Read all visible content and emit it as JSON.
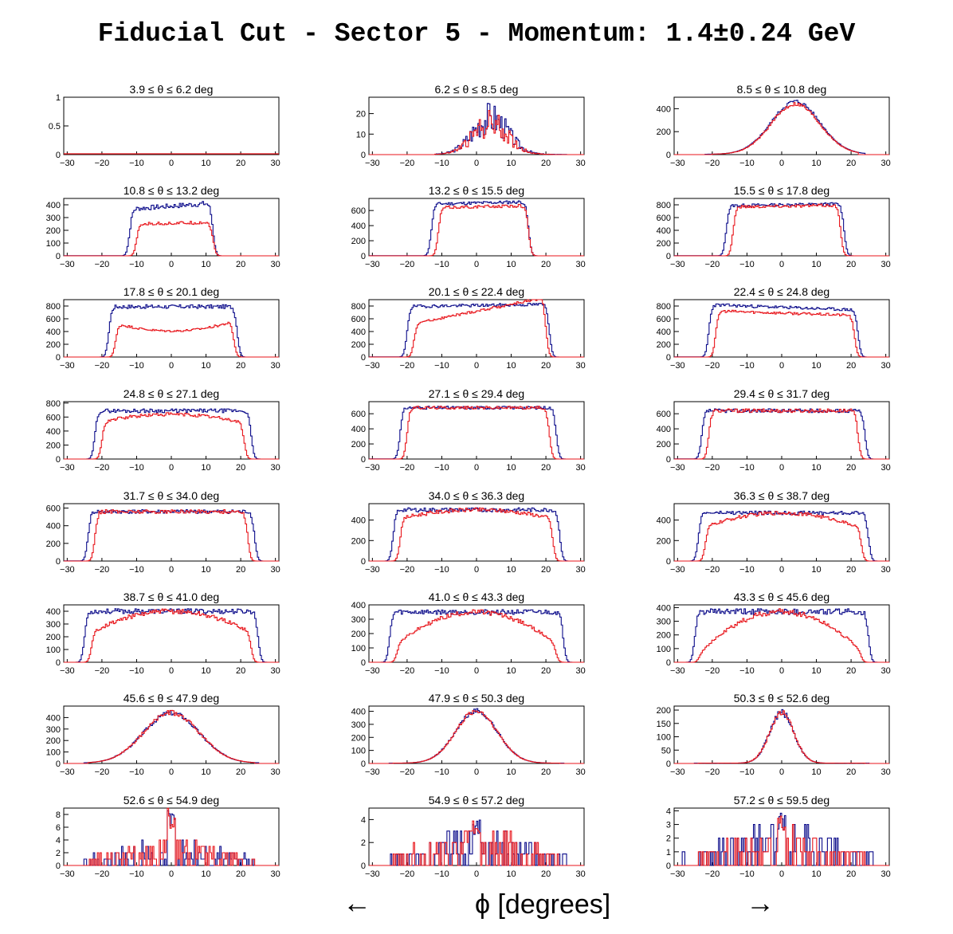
{
  "title": "Fiducial Cut - Sector 5 - Momentum: 1.4±0.24 GeV",
  "footer": {
    "arrow_left": "←",
    "xlabel": "ϕ  [degrees]",
    "arrow_right": "→"
  },
  "colors": {
    "blue_series": "#0b0b8a",
    "red_series": "#e8151b"
  },
  "chart_data": [
    {
      "type": "histogram",
      "title": "3.9 ≤ θ ≤ 6.2 deg",
      "ylim": [
        0,
        1
      ],
      "yticks": [
        "0",
        "0.5",
        "1"
      ],
      "xticks": [
        "−30",
        "−20",
        "−10",
        "0",
        "10",
        "20",
        "30"
      ],
      "shape": {
        "kind": "empty"
      }
    },
    {
      "type": "histogram",
      "title": "6.2 ≤ θ ≤ 8.5 deg",
      "ylim": [
        0,
        28
      ],
      "yticks": [
        "0",
        "10",
        "20"
      ],
      "xticks": [
        "−30",
        "−20",
        "−10",
        "0",
        "10",
        "20",
        "30"
      ],
      "shape": {
        "kind": "peak",
        "center": 4,
        "width": 5,
        "blue_peak": 18,
        "red_peak": 15,
        "blue_range": [
          -12,
          26
        ],
        "red_range": [
          -12,
          22
        ],
        "noise": 0.45,
        "seed": 3
      }
    },
    {
      "type": "histogram",
      "title": "8.5 ≤ θ ≤ 10.8 deg",
      "ylim": [
        0,
        500
      ],
      "yticks": [
        "0",
        "200",
        "400"
      ],
      "xticks": [
        "−30",
        "−20",
        "−10",
        "0",
        "10",
        "20",
        "30"
      ],
      "shape": {
        "kind": "peak",
        "center": 4,
        "width": 7,
        "blue_peak": 460,
        "red_peak": 440,
        "blue_range": [
          -22,
          24
        ],
        "red_range": [
          -20,
          22
        ],
        "noise": 0.04,
        "seed": 5
      }
    },
    {
      "type": "histogram",
      "title": "10.8 ≤ θ ≤ 13.2 deg",
      "ylim": [
        0,
        450
      ],
      "yticks": [
        "0",
        "100",
        "200",
        "300",
        "400"
      ],
      "xticks": [
        "−30",
        "−20",
        "−10",
        "0",
        "10",
        "20",
        "30"
      ],
      "shape": {
        "kind": "plateau",
        "blue_edge": [
          -12,
          12
        ],
        "red_edge": [
          -10,
          12
        ],
        "blue_level": 390,
        "red_level": 255,
        "blue_tilt": 0.1,
        "red_tilt": 0.05,
        "noise": 0.05,
        "seed": 7
      }
    },
    {
      "type": "histogram",
      "title": "13.2 ≤ θ ≤ 15.5 deg",
      "ylim": [
        0,
        760
      ],
      "yticks": [
        "0",
        "200",
        "400",
        "600"
      ],
      "xticks": [
        "−30",
        "−20",
        "−10",
        "0",
        "10",
        "20",
        "30"
      ],
      "shape": {
        "kind": "plateau",
        "blue_edge": [
          -13,
          15
        ],
        "red_edge": [
          -11,
          15
        ],
        "blue_level": 700,
        "red_level": 650,
        "blue_tilt": 0.03,
        "red_tilt": 0.03,
        "noise": 0.03,
        "seed": 11
      }
    },
    {
      "type": "histogram",
      "title": "15.5 ≤ θ ≤ 17.8 deg",
      "ylim": [
        0,
        900
      ],
      "yticks": [
        "0",
        "200",
        "400",
        "600",
        "800"
      ],
      "xticks": [
        "−30",
        "−20",
        "−10",
        "0",
        "10",
        "20",
        "30"
      ],
      "shape": {
        "kind": "plateau",
        "blue_edge": [
          -16,
          18
        ],
        "red_edge": [
          -14,
          17
        ],
        "blue_level": 800,
        "red_level": 780,
        "blue_tilt": 0.02,
        "red_tilt": 0.02,
        "noise": 0.03,
        "seed": 13
      }
    },
    {
      "type": "histogram",
      "title": "17.8 ≤ θ ≤ 20.1 deg",
      "ylim": [
        0,
        900
      ],
      "yticks": [
        "0",
        "200",
        "400",
        "600",
        "800"
      ],
      "xticks": [
        "−30",
        "−20",
        "−10",
        "0",
        "10",
        "20",
        "30"
      ],
      "shape": {
        "kind": "plateau",
        "blue_edge": [
          -18,
          19
        ],
        "red_edge": [
          -16,
          18
        ],
        "blue_level": 790,
        "red_level": 430,
        "blue_tilt": 0.0,
        "red_tilt": 0.0,
        "red_dip": 0.28,
        "noise": 0.04,
        "seed": 17
      }
    },
    {
      "type": "histogram",
      "title": "20.1 ≤ θ ≤ 22.4 deg",
      "ylim": [
        0,
        900
      ],
      "yticks": [
        "0",
        "200",
        "400",
        "600",
        "800"
      ],
      "xticks": [
        "−30",
        "−20",
        "−10",
        "0",
        "10",
        "20",
        "30"
      ],
      "shape": {
        "kind": "plateau",
        "blue_edge": [
          -20,
          21
        ],
        "red_edge": [
          -18,
          20
        ],
        "blue_level": 810,
        "red_level": 720,
        "blue_tilt": 0.02,
        "red_tilt": 0.3,
        "noise": 0.03,
        "seed": 19
      }
    },
    {
      "type": "histogram",
      "title": "22.4 ≤ θ ≤ 24.8 deg",
      "ylim": [
        0,
        900
      ],
      "yticks": [
        "0",
        "200",
        "400",
        "600",
        "800"
      ],
      "xticks": [
        "−30",
        "−20",
        "−10",
        "0",
        "10",
        "20",
        "30"
      ],
      "shape": {
        "kind": "plateau",
        "blue_edge": [
          -21,
          22
        ],
        "red_edge": [
          -19,
          21
        ],
        "blue_level": 780,
        "red_level": 690,
        "blue_tilt": -0.05,
        "red_tilt": -0.05,
        "noise": 0.03,
        "seed": 23
      }
    },
    {
      "type": "histogram",
      "title": "24.8 ≤ θ ≤ 27.1 deg",
      "ylim": [
        0,
        820
      ],
      "yticks": [
        "0",
        "200",
        "400",
        "600",
        "800"
      ],
      "xticks": [
        "−30",
        "−20",
        "−10",
        "0",
        "10",
        "20",
        "30"
      ],
      "shape": {
        "kind": "plateau",
        "blue_edge": [
          -22,
          23
        ],
        "red_edge": [
          -20,
          21
        ],
        "blue_level": 690,
        "red_level": 640,
        "blue_tilt": 0.0,
        "red_tilt": 0.0,
        "red_round": 0.25,
        "noise": 0.04,
        "seed": 29
      }
    },
    {
      "type": "histogram",
      "title": "27.1 ≤ θ ≤ 29.4 deg",
      "ylim": [
        0,
        760
      ],
      "yticks": [
        "0",
        "200",
        "400",
        "600"
      ],
      "xticks": [
        "−30",
        "−20",
        "−10",
        "0",
        "10",
        "20",
        "30"
      ],
      "shape": {
        "kind": "plateau",
        "blue_edge": [
          -22,
          23
        ],
        "red_edge": [
          -20,
          21
        ],
        "blue_level": 680,
        "red_level": 680,
        "blue_tilt": 0.0,
        "red_tilt": 0.0,
        "noise": 0.03,
        "seed": 31
      }
    },
    {
      "type": "histogram",
      "title": "29.4 ≤ θ ≤ 31.7 deg",
      "ylim": [
        0,
        760
      ],
      "yticks": [
        "0",
        "200",
        "400",
        "600"
      ],
      "xticks": [
        "−30",
        "−20",
        "−10",
        "0",
        "10",
        "20",
        "30"
      ],
      "shape": {
        "kind": "plateau",
        "blue_edge": [
          -23,
          24
        ],
        "red_edge": [
          -21,
          22
        ],
        "blue_level": 640,
        "red_level": 640,
        "blue_tilt": 0.0,
        "red_tilt": 0.0,
        "noise": 0.04,
        "seed": 37
      }
    },
    {
      "type": "histogram",
      "title": "31.7 ≤ θ ≤ 34.0 deg",
      "ylim": [
        0,
        650
      ],
      "yticks": [
        "0",
        "200",
        "400",
        "600"
      ],
      "xticks": [
        "−30",
        "−20",
        "−10",
        "0",
        "10",
        "20",
        "30"
      ],
      "shape": {
        "kind": "plateau",
        "blue_edge": [
          -24,
          24
        ],
        "red_edge": [
          -22,
          22
        ],
        "blue_level": 560,
        "red_level": 560,
        "blue_tilt": 0.0,
        "red_tilt": 0.0,
        "noise": 0.04,
        "seed": 41
      }
    },
    {
      "type": "histogram",
      "title": "34.0 ≤ θ ≤ 36.3 deg",
      "ylim": [
        0,
        560
      ],
      "yticks": [
        "0",
        "200",
        "400"
      ],
      "xticks": [
        "−30",
        "−20",
        "−10",
        "0",
        "10",
        "20",
        "30"
      ],
      "shape": {
        "kind": "plateau",
        "blue_edge": [
          -24,
          24
        ],
        "red_edge": [
          -22,
          22
        ],
        "blue_level": 500,
        "red_level": 500,
        "blue_tilt": 0.0,
        "red_tilt": 0.0,
        "red_round": 0.2,
        "noise": 0.04,
        "seed": 43
      }
    },
    {
      "type": "histogram",
      "title": "36.3 ≤ θ ≤ 38.7 deg",
      "ylim": [
        0,
        560
      ],
      "yticks": [
        "0",
        "200",
        "400"
      ],
      "xticks": [
        "−30",
        "−20",
        "−10",
        "0",
        "10",
        "20",
        "30"
      ],
      "shape": {
        "kind": "plateau",
        "blue_edge": [
          -24,
          25
        ],
        "red_edge": [
          -22,
          23
        ],
        "blue_level": 470,
        "red_level": 470,
        "blue_tilt": 0.0,
        "red_tilt": 0.0,
        "red_round": 0.35,
        "noise": 0.04,
        "seed": 47
      }
    },
    {
      "type": "histogram",
      "title": "38.7 ≤ θ ≤ 41.0 deg",
      "ylim": [
        0,
        450
      ],
      "yticks": [
        "0",
        "100",
        "200",
        "300",
        "400"
      ],
      "xticks": [
        "−30",
        "−20",
        "−10",
        "0",
        "10",
        "20",
        "30"
      ],
      "shape": {
        "kind": "plateau",
        "blue_edge": [
          -25,
          25
        ],
        "red_edge": [
          -23,
          23
        ],
        "blue_level": 400,
        "red_level": 400,
        "blue_tilt": 0.0,
        "red_tilt": 0.0,
        "red_round": 0.45,
        "noise": 0.05,
        "seed": 53
      }
    },
    {
      "type": "histogram",
      "title": "41.0 ≤ θ ≤ 43.3 deg",
      "ylim": [
        0,
        400
      ],
      "yticks": [
        "0",
        "100",
        "200",
        "300",
        "400"
      ],
      "xticks": [
        "−30",
        "−20",
        "−10",
        "0",
        "10",
        "20",
        "30"
      ],
      "shape": {
        "kind": "plateau",
        "blue_edge": [
          -25,
          25
        ],
        "red_edge": [
          -23,
          23
        ],
        "blue_level": 350,
        "red_level": 350,
        "blue_tilt": 0.0,
        "red_tilt": 0.0,
        "red_round": 0.7,
        "noise": 0.05,
        "seed": 59
      }
    },
    {
      "type": "histogram",
      "title": "43.3 ≤ θ ≤ 45.6 deg",
      "ylim": [
        0,
        420
      ],
      "yticks": [
        "0",
        "100",
        "200",
        "300",
        "400"
      ],
      "xticks": [
        "−30",
        "−20",
        "−10",
        "0",
        "10",
        "20",
        "30"
      ],
      "shape": {
        "kind": "plateau",
        "blue_edge": [
          -25,
          25
        ],
        "red_edge": [
          -24,
          23
        ],
        "blue_level": 370,
        "red_level": 370,
        "blue_tilt": 0.0,
        "red_tilt": 0.0,
        "red_round": 0.85,
        "noise": 0.06,
        "seed": 61
      }
    },
    {
      "type": "histogram",
      "title": "45.6 ≤ θ ≤ 47.9 deg",
      "ylim": [
        0,
        500
      ],
      "yticks": [
        "0",
        "100",
        "200",
        "300",
        "400"
      ],
      "xticks": [
        "−30",
        "−20",
        "−10",
        "0",
        "10",
        "20",
        "30"
      ],
      "shape": {
        "kind": "peak",
        "center": 0,
        "width": 8,
        "blue_peak": 440,
        "red_peak": 440,
        "blue_range": [
          -25,
          25
        ],
        "red_range": [
          -24,
          24
        ],
        "noise": 0.05,
        "seed": 67
      }
    },
    {
      "type": "histogram",
      "title": "47.9 ≤ θ ≤ 50.3 deg",
      "ylim": [
        0,
        440
      ],
      "yticks": [
        "0",
        "100",
        "200",
        "300",
        "400"
      ],
      "xticks": [
        "−30",
        "−20",
        "−10",
        "0",
        "10",
        "20",
        "30"
      ],
      "shape": {
        "kind": "peak",
        "center": 0,
        "width": 6,
        "blue_peak": 400,
        "red_peak": 400,
        "blue_range": [
          -25,
          25
        ],
        "red_range": [
          -24,
          24
        ],
        "noise": 0.05,
        "seed": 71
      }
    },
    {
      "type": "histogram",
      "title": "50.3 ≤ θ ≤ 52.6 deg",
      "ylim": [
        0,
        215
      ],
      "yticks": [
        "0",
        "50",
        "100",
        "150",
        "200"
      ],
      "xticks": [
        "−30",
        "−20",
        "−10",
        "0",
        "10",
        "20",
        "30"
      ],
      "shape": {
        "kind": "peak",
        "center": 0,
        "width": 3.5,
        "blue_peak": 190,
        "red_peak": 190,
        "blue_range": [
          -25,
          25
        ],
        "red_range": [
          -24,
          24
        ],
        "noise": 0.07,
        "seed": 73
      }
    },
    {
      "type": "histogram",
      "title": "52.6 ≤ θ ≤ 54.9 deg",
      "ylim": [
        0,
        9
      ],
      "yticks": [
        "0",
        "2",
        "4",
        "6",
        "8"
      ],
      "xticks": [
        "−30",
        "−20",
        "−10",
        "0",
        "10",
        "20",
        "30"
      ],
      "shape": {
        "kind": "sparse",
        "peak": 9,
        "base": 1.6,
        "blue_range": [
          -25,
          25
        ],
        "red_range": [
          -24,
          24
        ],
        "seed": 79
      }
    },
    {
      "type": "histogram",
      "title": "54.9 ≤ θ ≤ 57.2 deg",
      "ylim": [
        0,
        5
      ],
      "yticks": [
        "0",
        "2",
        "4"
      ],
      "xticks": [
        "−30",
        "−20",
        "−10",
        "0",
        "10",
        "20",
        "30"
      ],
      "shape": {
        "kind": "sparse",
        "peak": 4,
        "base": 1.2,
        "blue_range": [
          -25,
          26
        ],
        "red_range": [
          -24,
          24
        ],
        "seed": 83
      }
    },
    {
      "type": "histogram",
      "title": "57.2 ≤ θ ≤ 59.5 deg",
      "ylim": [
        0,
        4.2
      ],
      "yticks": [
        "0",
        "1",
        "2",
        "3",
        "4"
      ],
      "xticks": [
        "−30",
        "−20",
        "−10",
        "0",
        "10",
        "20",
        "30"
      ],
      "shape": {
        "kind": "sparse",
        "peak": 4,
        "base": 1.0,
        "blue_range": [
          -30,
          27
        ],
        "red_range": [
          -24,
          24
        ],
        "seed": 89
      }
    }
  ]
}
